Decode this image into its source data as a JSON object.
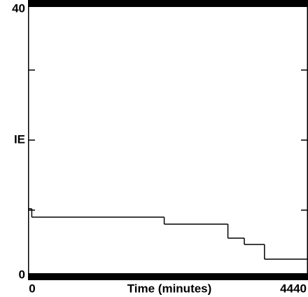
{
  "chart_data": {
    "type": "step",
    "ylabel": "IE",
    "xlabel": "Time (minutes)",
    "x": [
      0,
      60,
      2160,
      3170,
      3430,
      3750
    ],
    "values": [
      10.2,
      9,
      8,
      6,
      5.1,
      3
    ],
    "color": "#000000",
    "xlim": [
      0,
      4440
    ],
    "xticks": [
      0,
      4440
    ],
    "ylim": [
      0,
      40
    ],
    "yticks": [
      0,
      40
    ],
    "y_minor_ticks": [
      10,
      20,
      30
    ]
  }
}
